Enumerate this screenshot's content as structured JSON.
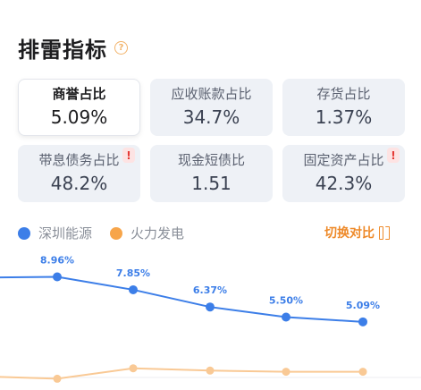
{
  "header": {
    "title": "排雷指标",
    "help_icon": "?"
  },
  "cards": [
    {
      "label": "商誉占比",
      "value": "5.09%",
      "selected": true,
      "alert": false
    },
    {
      "label": "应收账款占比",
      "value": "34.7%",
      "selected": false,
      "alert": false
    },
    {
      "label": "存货占比",
      "value": "1.37%",
      "selected": false,
      "alert": false
    },
    {
      "label": "带息债务占比",
      "value": "48.2%",
      "selected": false,
      "alert": true
    },
    {
      "label": "现金短债比",
      "value": "1.51",
      "selected": false,
      "alert": false
    },
    {
      "label": "固定资产占比",
      "value": "42.3%",
      "selected": false,
      "alert": true
    }
  ],
  "alert_glyph": "!",
  "legend": [
    {
      "name": "深圳能源",
      "color": "#3c7ee8"
    },
    {
      "name": "火力发电",
      "color": "#f7a54a"
    }
  ],
  "compare_label": "切换对比",
  "chart_data": {
    "type": "line",
    "series": [
      {
        "name": "深圳能源",
        "color": "#3c7ee8",
        "values": [
          8.9,
          8.96,
          7.85,
          6.37,
          5.5,
          5.09
        ],
        "labels": [
          "",
          "8.96%",
          "7.85%",
          "6.37%",
          "5.50%",
          "5.09%"
        ]
      },
      {
        "name": "火力发电",
        "color": "#f9c995",
        "values": [
          0.4,
          0.2,
          1.1,
          0.9,
          0.8,
          0.8
        ],
        "labels": []
      }
    ],
    "ylim": [
      0,
      12
    ],
    "grid": false
  }
}
